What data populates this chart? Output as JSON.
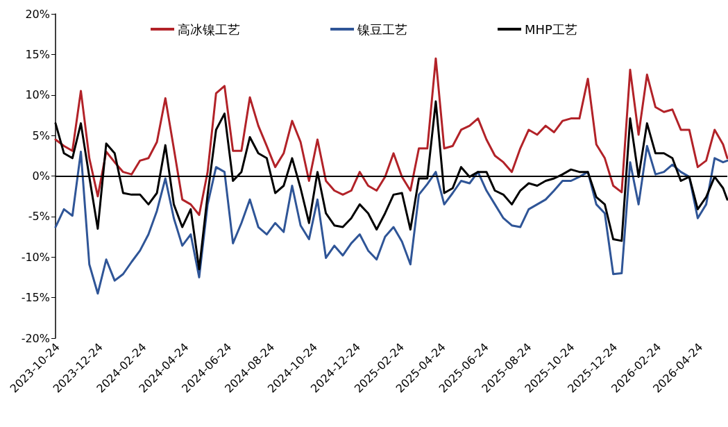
{
  "chart_data": {
    "type": "line",
    "x": [
      "2023-10-21",
      "2023-11-02",
      "2023-11-14",
      "2023-11-26",
      "2023-12-08",
      "2023-12-20",
      "2024-01-01",
      "2024-01-13",
      "2024-01-25",
      "2024-02-06",
      "2024-02-18",
      "2024-03-01",
      "2024-03-13",
      "2024-03-25",
      "2024-04-06",
      "2024-04-18",
      "2024-04-30",
      "2024-05-12",
      "2024-05-24",
      "2024-06-05",
      "2024-06-17",
      "2024-06-29",
      "2024-07-11",
      "2024-07-23",
      "2024-08-04",
      "2024-08-16",
      "2024-08-28",
      "2024-09-09",
      "2024-09-21",
      "2024-10-03",
      "2024-10-15",
      "2024-10-27",
      "2024-11-08",
      "2024-11-20",
      "2024-12-02",
      "2024-12-14",
      "2024-12-26",
      "2025-01-07",
      "2025-01-19",
      "2025-01-31",
      "2025-02-12",
      "2025-02-24",
      "2025-03-08",
      "2025-03-20",
      "2025-04-01",
      "2025-04-13",
      "2025-04-25",
      "2025-05-07",
      "2025-05-19",
      "2025-05-31",
      "2025-06-12",
      "2025-06-24",
      "2025-07-06",
      "2025-07-18",
      "2025-07-30",
      "2025-08-11",
      "2025-08-23",
      "2025-09-04",
      "2025-09-16",
      "2025-09-28",
      "2025-10-10",
      "2025-10-22",
      "2025-11-03",
      "2025-11-15",
      "2025-11-27",
      "2025-12-09",
      "2025-12-21",
      "2026-01-02",
      "2026-01-14",
      "2026-01-26",
      "2026-02-07",
      "2026-02-19",
      "2026-03-03",
      "2026-03-15",
      "2026-03-27",
      "2026-04-08",
      "2026-04-20",
      "2026-05-02",
      "2026-05-14",
      "2026-05-26",
      "2026-06-01"
    ],
    "series": [
      {
        "name": "高冰镍工艺",
        "color": "#b22228",
        "values": [
          4.5,
          3.7,
          3.1,
          10.5,
          2.2,
          -2.5,
          3.0,
          1.7,
          0.5,
          0.2,
          1.9,
          2.2,
          4.2,
          9.6,
          3.4,
          -2.9,
          -3.5,
          -4.8,
          0.5,
          10.2,
          11.1,
          3.1,
          3.1,
          9.7,
          6.2,
          3.7,
          1.1,
          2.8,
          6.8,
          4.2,
          -0.6,
          4.5,
          -0.6,
          -1.8,
          -2.3,
          -1.8,
          0.5,
          -1.2,
          -1.8,
          -0.1,
          2.8,
          -0.1,
          -1.8,
          3.4,
          3.4,
          14.5,
          3.4,
          3.7,
          5.7,
          6.2,
          7.1,
          4.5,
          2.5,
          1.7,
          0.5,
          3.4,
          5.7,
          5.1,
          6.2,
          5.4,
          6.8,
          7.1,
          7.1,
          12.0,
          3.9,
          2.2,
          -1.2,
          -2.0,
          13.1,
          5.1,
          12.5,
          8.5,
          7.9,
          8.2,
          5.7,
          5.7,
          1.1,
          1.9,
          5.7,
          3.9,
          2.2
        ]
      },
      {
        "name": "镍豆工艺",
        "color": "#2f5597",
        "values": [
          -6.3,
          -4.1,
          -4.9,
          3.0,
          -10.9,
          -14.5,
          -10.3,
          -12.9,
          -12.1,
          -10.6,
          -9.2,
          -7.2,
          -4.3,
          -0.3,
          -5.2,
          -8.6,
          -7.2,
          -12.5,
          -3.5,
          1.1,
          0.5,
          -8.3,
          -5.8,
          -2.9,
          -6.3,
          -7.2,
          -5.8,
          -6.9,
          -1.2,
          -6.1,
          -7.8,
          -2.9,
          -10.1,
          -8.6,
          -9.8,
          -8.3,
          -7.2,
          -9.2,
          -10.3,
          -7.5,
          -6.3,
          -8.1,
          -10.9,
          -2.3,
          -1.0,
          0.5,
          -3.5,
          -2.1,
          -0.6,
          -0.9,
          0.5,
          -1.8,
          -3.5,
          -5.2,
          -6.1,
          -6.3,
          -4.1,
          -3.5,
          -2.9,
          -1.8,
          -0.6,
          -0.6,
          -0.1,
          0.5,
          -3.5,
          -4.6,
          -12.1,
          -12.0,
          1.7,
          -3.5,
          3.7,
          0.2,
          0.5,
          1.4,
          0.5,
          -0.1,
          -5.2,
          -3.5,
          2.2,
          1.7,
          1.9
        ]
      },
      {
        "name": "MHP工艺",
        "color": "#000000",
        "values": [
          6.5,
          2.8,
          2.2,
          6.5,
          -0.1,
          -6.5,
          4.0,
          2.8,
          -2.1,
          -2.3,
          -2.3,
          -3.5,
          -2.1,
          3.8,
          -3.5,
          -6.3,
          -4.1,
          -11.5,
          -2.3,
          5.7,
          7.7,
          -0.6,
          0.5,
          4.8,
          2.8,
          2.2,
          -2.1,
          -1.2,
          2.2,
          -1.5,
          -5.8,
          0.5,
          -4.6,
          -6.1,
          -6.3,
          -5.2,
          -3.5,
          -4.6,
          -6.6,
          -4.6,
          -2.3,
          -2.1,
          -6.6,
          -0.3,
          -0.3,
          9.2,
          -2.1,
          -1.5,
          1.1,
          -0.1,
          0.5,
          0.5,
          -1.8,
          -2.3,
          -3.5,
          -1.8,
          -0.9,
          -1.2,
          -0.6,
          -0.3,
          0.2,
          0.8,
          0.5,
          0.5,
          -2.6,
          -3.5,
          -7.8,
          -8.0,
          7.1,
          -0.1,
          6.5,
          2.8,
          2.8,
          2.2,
          -0.6,
          -0.1,
          -4.1,
          -2.6,
          -0.1,
          -1.5,
          -2.9
        ]
      }
    ],
    "xlim": [
      "2023-10-21",
      "2026-06-01"
    ],
    "xticks": [
      "2023-10-24",
      "2023-12-24",
      "2024-02-24",
      "2024-04-24",
      "2024-06-24",
      "2024-08-24",
      "2024-10-24",
      "2024-12-24",
      "2025-02-24",
      "2025-04-24",
      "2025-06-24",
      "2025-08-24",
      "2025-10-24",
      "2025-12-24",
      "2026-02-24",
      "2026-04-24"
    ],
    "ylim": [
      -20,
      20
    ],
    "yticks": [
      {
        "value": -20,
        "label": "-20%"
      },
      {
        "value": -15,
        "label": "-15%"
      },
      {
        "value": -10,
        "label": "-10%"
      },
      {
        "value": -5,
        "label": "-5%"
      },
      {
        "value": 0,
        "label": "0%"
      },
      {
        "value": 5,
        "label": "5%"
      },
      {
        "value": 10,
        "label": "10%"
      },
      {
        "value": 15,
        "label": "15%"
      },
      {
        "value": 20,
        "label": "20%"
      }
    ],
    "legend": "top",
    "ref_lines": [
      {
        "axis": "y",
        "value": 0,
        "color": "#000000",
        "line_style": "solid"
      }
    ],
    "marker": "none",
    "line_style": "solid"
  }
}
